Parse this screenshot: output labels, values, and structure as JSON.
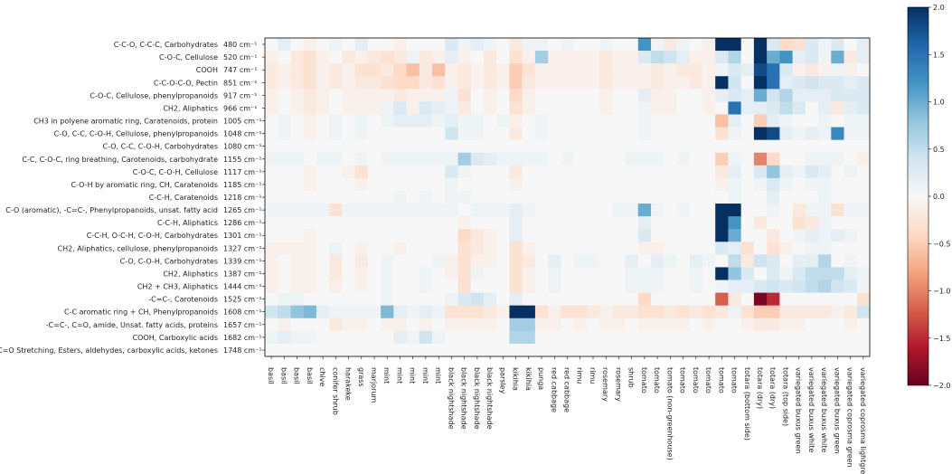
{
  "chart_data": {
    "type": "heatmap",
    "y_labels": [
      {
        "name": "C-C-O, C-C-C, Carbohydrates",
        "wavenumber": "480 cm⁻¹"
      },
      {
        "name": "C-O-C, Cellulose",
        "wavenumber": "520 cm⁻¹"
      },
      {
        "name": "COOH",
        "wavenumber": "747 cm⁻¹"
      },
      {
        "name": "C-C-O-C-O, Pectin",
        "wavenumber": "851 cm⁻¹"
      },
      {
        "name": "C-O-C, Cellulose, phenylpropanoids",
        "wavenumber": "917 cm⁻¹"
      },
      {
        "name": "CH2, Aliphatics",
        "wavenumber": "966 cm⁻¹"
      },
      {
        "name": "CH3 in polyene aromatic ring, Caratenoids, protein",
        "wavenumber": "1005 cm⁻¹"
      },
      {
        "name": "C-O, C-C, C-O-H, Cellulose, phenylpropanoids",
        "wavenumber": "1048 cm⁻¹"
      },
      {
        "name": "C-O, C-C, C-O-H, Carbohydrates",
        "wavenumber": "1080 cm⁻¹"
      },
      {
        "name": "C-C, C-O-C, ring breathing, Carotenoids, carbohydrate",
        "wavenumber": "1155 cm⁻¹"
      },
      {
        "name": "C-O-C, C-O-H, Cellulose",
        "wavenumber": "1117 cm⁻¹"
      },
      {
        "name": "C-O-H by aromatic ring, CH, Caratenoids",
        "wavenumber": "1185 cm⁻¹"
      },
      {
        "name": "C-C-H, Caratenoids",
        "wavenumber": "1218 cm⁻¹"
      },
      {
        "name": "C-O (aromatic), -C=C-, Phenylpropanoids, unsat. fatty acid",
        "wavenumber": "1265 cm⁻¹"
      },
      {
        "name": "C-C-H, Aliphatics",
        "wavenumber": "1286 cm⁻¹"
      },
      {
        "name": "C-C-H, O-C-H, C-O-H, Carbohydrates",
        "wavenumber": "1301 cm⁻¹"
      },
      {
        "name": "CH2, Aliphatics, cellulose, phenylpropanoids",
        "wavenumber": "1327 cm⁻¹"
      },
      {
        "name": "C-O, C-O-H, Carbohydrates",
        "wavenumber": "1339 cm⁻¹"
      },
      {
        "name": "CH2, Aliphatics",
        "wavenumber": "1387 cm⁻¹"
      },
      {
        "name": "CH2 + CH3, Aliphatics",
        "wavenumber": "1444 cm⁻¹"
      },
      {
        "name": "-C=C-, Carotenoids",
        "wavenumber": "1525 cm⁻¹"
      },
      {
        "name": "C-C aromatic ring + CH, Phenylpropanoids",
        "wavenumber": "1608 cm⁻¹"
      },
      {
        "name": "-C=C-, C=O, amide, Unsat. fatty acids, proteins",
        "wavenumber": "1657 cm⁻¹"
      },
      {
        "name": "COOH, Carboxylic acids",
        "wavenumber": "1682 cm⁻¹"
      },
      {
        "name": "C=O Stretching, Esters, aldehydes, carboxylic acids, ketones",
        "wavenumber": "1748 cm⁻¹"
      }
    ],
    "x_labels": [
      "basil",
      "basil",
      "basil",
      "basil",
      "chive",
      "conifer shrub",
      "harakeke",
      "grass",
      "marjorum",
      "mint",
      "mint",
      "mint",
      "mint",
      "mint",
      "black nightshade",
      "black nightshade",
      "black nightshade",
      "black nightshade",
      "parsley",
      "kikihia",
      "kikihia",
      "punga",
      "red cabbage",
      "red cabbage",
      "rimu",
      "rimu",
      "rosemary",
      "rosemary",
      "shrub",
      "tomato",
      "tomato",
      "tomato (non-greenhouse)",
      "tomato",
      "tomato",
      "tomato",
      "tomato",
      "tomato",
      "totara (bottom side)",
      "totara (dry)",
      "totara (dry)",
      "totara (top side)",
      "variegated buxus green",
      "variegated buxus white",
      "variegated buxus white",
      "variegated buxus green",
      "variegated coprosma green",
      "variegated coprosma lightgreen"
    ],
    "colorbar": {
      "min": -2.0,
      "max": 2.0,
      "ticks": [
        "2.0",
        "1.5",
        "1.0",
        "0.5",
        "0.0",
        "−0.5",
        "−1.0",
        "−1.5",
        "−2.0"
      ],
      "colormap": "RdBu"
    },
    "values": [
      [
        0.0,
        0.2,
        0.0,
        -0.1,
        0.0,
        0.1,
        0.0,
        0.2,
        0.0,
        0.0,
        -0.1,
        0.0,
        0.0,
        0.0,
        0.3,
        0.1,
        0.2,
        0.1,
        0.0,
        -0.2,
        0.1,
        0.1,
        0.0,
        0.1,
        0.0,
        0.0,
        0.1,
        0.0,
        0.0,
        1.2,
        0.1,
        -0.2,
        0.1,
        0.0,
        -0.1,
        2.0,
        2.0,
        0.0,
        2.0,
        0.3,
        -0.4,
        -0.3,
        0.3,
        0.1,
        0.3,
        0.0,
        0.2
      ],
      [
        -0.1,
        0.0,
        -0.2,
        -0.3,
        -0.1,
        0.0,
        -0.2,
        -0.1,
        -0.2,
        -0.3,
        -0.2,
        0.1,
        -0.2,
        -0.1,
        0.2,
        -0.1,
        0.0,
        -0.2,
        0.0,
        -0.3,
        -0.1,
        0.7,
        -0.1,
        -0.1,
        -0.1,
        -0.1,
        -0.2,
        -0.1,
        -0.1,
        0.3,
        0.5,
        0.4,
        0.2,
        -0.1,
        -0.1,
        0.3,
        0.6,
        0.0,
        2.0,
        1.0,
        1.2,
        0.2,
        0.3,
        0.1,
        1.0,
        -0.2,
        0.2
      ],
      [
        -0.2,
        -0.1,
        -0.2,
        -0.3,
        -0.1,
        -0.2,
        -0.1,
        -0.3,
        -0.3,
        -0.2,
        -0.4,
        -0.6,
        -0.2,
        -0.6,
        -0.1,
        -0.2,
        -0.1,
        -0.2,
        -0.1,
        -0.5,
        -0.3,
        -0.1,
        -0.1,
        -0.1,
        -0.1,
        -0.1,
        -0.2,
        -0.1,
        -0.1,
        -0.1,
        -0.2,
        -0.1,
        -0.2,
        -0.2,
        -0.1,
        0.1,
        0.3,
        0.2,
        1.8,
        1.5,
        0.3,
        -0.1,
        -0.2,
        -0.1,
        0.1,
        -0.1,
        0.0
      ],
      [
        -0.2,
        -0.1,
        -0.2,
        -0.3,
        -0.1,
        -0.2,
        -0.1,
        -0.2,
        -0.2,
        -0.3,
        -0.4,
        -0.4,
        -0.2,
        -0.3,
        -0.1,
        -0.2,
        -0.1,
        -0.2,
        -0.1,
        -0.5,
        -0.2,
        -0.1,
        -0.1,
        -0.1,
        -0.1,
        -0.1,
        -0.2,
        -0.1,
        -0.1,
        -0.1,
        -0.2,
        -0.1,
        -0.1,
        -0.2,
        -0.1,
        2.0,
        0.4,
        0.0,
        2.0,
        1.5,
        0.2,
        0.3,
        0.4,
        0.3,
        0.3,
        0.2,
        0.3
      ],
      [
        -0.1,
        0.0,
        -0.1,
        -0.2,
        -0.1,
        0.0,
        -0.1,
        -0.1,
        -0.1,
        -0.1,
        -0.2,
        -0.1,
        -0.1,
        -0.1,
        0.1,
        -0.3,
        0.0,
        -0.1,
        0.0,
        -0.4,
        -0.1,
        0.0,
        0.0,
        0.0,
        0.0,
        0.0,
        -0.1,
        0.0,
        0.0,
        0.2,
        -0.1,
        -0.1,
        0.0,
        0.0,
        -0.1,
        0.2,
        0.3,
        0.2,
        1.0,
        0.4,
        0.6,
        0.2,
        0.2,
        0.2,
        0.3,
        0.3,
        0.3
      ],
      [
        -0.1,
        0.0,
        -0.1,
        -0.2,
        -0.1,
        0.0,
        -0.1,
        -0.1,
        -0.1,
        0.1,
        0.3,
        -0.1,
        0.3,
        0.2,
        0.1,
        -0.2,
        0.0,
        -0.1,
        0.0,
        -0.3,
        -0.1,
        0.0,
        0.0,
        0.0,
        0.0,
        0.0,
        -0.1,
        0.0,
        0.0,
        0.1,
        -0.1,
        -0.1,
        0.0,
        0.0,
        -0.1,
        0.0,
        1.5,
        0.2,
        0.2,
        0.3,
        0.5,
        0.3,
        0.0,
        0.2,
        -0.2,
        0.2,
        0.3
      ],
      [
        0.0,
        0.1,
        0.0,
        -0.1,
        0.0,
        0.1,
        0.0,
        0.1,
        0.0,
        0.1,
        0.2,
        0.2,
        0.2,
        0.1,
        0.2,
        0.1,
        0.1,
        0.0,
        0.1,
        -0.1,
        0.0,
        0.1,
        0.0,
        0.0,
        0.0,
        0.0,
        0.0,
        0.0,
        0.0,
        0.1,
        0.0,
        0.0,
        0.0,
        0.0,
        0.0,
        -0.6,
        0.2,
        0.0,
        -0.5,
        0.2,
        0.1,
        0.0,
        0.0,
        0.1,
        0.0,
        0.1,
        0.1
      ],
      [
        0.0,
        0.1,
        0.0,
        -0.1,
        0.0,
        0.1,
        0.0,
        0.1,
        0.0,
        0.0,
        0.0,
        0.0,
        0.0,
        0.0,
        0.4,
        0.1,
        0.1,
        0.0,
        0.0,
        -0.2,
        0.0,
        0.1,
        0.0,
        0.0,
        0.0,
        0.0,
        0.0,
        0.0,
        0.0,
        0.1,
        0.0,
        0.0,
        0.0,
        0.0,
        0.0,
        -0.3,
        0.1,
        0.0,
        2.0,
        1.8,
        0.2,
        0.1,
        0.2,
        0.1,
        1.3,
        0.1,
        0.1
      ],
      [
        0.0,
        0.0,
        0.0,
        0.0,
        0.0,
        0.0,
        0.0,
        0.0,
        0.0,
        0.0,
        0.0,
        0.0,
        0.0,
        0.0,
        0.0,
        0.0,
        0.0,
        0.0,
        0.0,
        0.0,
        0.0,
        0.0,
        0.0,
        0.0,
        0.0,
        0.0,
        0.0,
        0.0,
        0.0,
        0.0,
        0.0,
        0.0,
        0.0,
        0.0,
        0.0,
        0.0,
        0.0,
        0.0,
        0.0,
        0.0,
        0.0,
        0.0,
        0.0,
        0.0,
        0.0,
        0.0,
        0.0
      ],
      [
        0.1,
        0.1,
        0.1,
        0.0,
        0.1,
        0.1,
        0.0,
        0.1,
        0.0,
        0.1,
        0.1,
        0.1,
        0.1,
        0.1,
        0.1,
        0.7,
        0.3,
        0.2,
        0.1,
        0.1,
        0.1,
        0.1,
        0.0,
        0.1,
        0.0,
        0.0,
        0.0,
        0.0,
        0.1,
        0.1,
        0.1,
        0.0,
        0.1,
        0.0,
        0.0,
        -0.5,
        0.1,
        0.0,
        -1.0,
        -0.4,
        0.0,
        0.0,
        0.1,
        0.1,
        0.1,
        0.0,
        -0.1
      ],
      [
        0.0,
        0.0,
        0.0,
        -0.1,
        0.0,
        0.0,
        -0.1,
        -0.3,
        0.0,
        0.0,
        0.0,
        0.0,
        0.0,
        0.0,
        0.3,
        0.1,
        0.0,
        0.0,
        0.0,
        -0.2,
        0.0,
        0.0,
        0.0,
        0.0,
        0.0,
        0.0,
        0.0,
        0.0,
        0.0,
        0.0,
        0.0,
        0.0,
        0.0,
        0.0,
        0.0,
        -0.2,
        0.2,
        0.0,
        0.3,
        0.8,
        0.2,
        0.1,
        0.3,
        0.2,
        0.0,
        0.1,
        0.0
      ],
      [
        0.0,
        0.0,
        0.0,
        -0.1,
        0.0,
        0.0,
        0.0,
        -0.1,
        0.0,
        0.0,
        0.0,
        0.0,
        0.0,
        0.0,
        0.1,
        0.0,
        0.0,
        0.0,
        0.0,
        -0.1,
        0.0,
        0.0,
        0.0,
        0.0,
        0.0,
        0.0,
        0.0,
        0.0,
        0.0,
        0.0,
        0.0,
        0.0,
        0.0,
        0.0,
        0.0,
        -0.1,
        0.1,
        0.0,
        0.1,
        0.3,
        0.1,
        0.0,
        0.1,
        0.1,
        0.0,
        0.0,
        0.0
      ],
      [
        0.0,
        0.0,
        0.0,
        0.0,
        0.0,
        0.0,
        0.0,
        0.0,
        0.0,
        0.0,
        0.1,
        0.0,
        0.1,
        0.0,
        0.1,
        0.1,
        0.0,
        0.0,
        0.0,
        0.0,
        0.0,
        0.0,
        0.0,
        0.0,
        0.0,
        0.0,
        0.0,
        0.0,
        0.0,
        0.0,
        0.0,
        0.0,
        0.0,
        0.0,
        0.0,
        0.0,
        0.1,
        0.0,
        0.0,
        0.2,
        0.0,
        0.0,
        0.0,
        0.1,
        0.0,
        0.0,
        0.0
      ],
      [
        0.1,
        0.1,
        0.1,
        0.1,
        0.1,
        -0.3,
        0.1,
        0.1,
        0.1,
        0.1,
        0.1,
        0.1,
        0.1,
        0.1,
        0.1,
        0.0,
        0.1,
        0.1,
        0.1,
        0.2,
        0.1,
        0.0,
        0.0,
        0.0,
        0.0,
        0.0,
        0.0,
        0.1,
        0.1,
        1.0,
        0.1,
        0.0,
        0.1,
        0.0,
        0.0,
        2.0,
        2.0,
        0.0,
        0.0,
        0.1,
        0.0,
        -0.2,
        0.1,
        0.1,
        -0.3,
        0.1,
        0.1
      ],
      [
        0.0,
        0.0,
        0.0,
        0.0,
        0.0,
        0.0,
        0.0,
        0.0,
        0.0,
        0.0,
        0.0,
        0.0,
        0.0,
        0.0,
        0.0,
        -0.1,
        0.0,
        0.0,
        0.0,
        0.2,
        0.0,
        0.0,
        0.0,
        0.0,
        0.0,
        0.0,
        0.0,
        0.0,
        0.0,
        0.2,
        0.0,
        0.0,
        0.0,
        0.0,
        0.0,
        2.0,
        1.2,
        0.0,
        -0.2,
        0.0,
        0.0,
        -0.3,
        -0.2,
        0.1,
        0.0,
        0.0,
        0.0
      ],
      [
        0.0,
        0.0,
        0.0,
        -0.1,
        0.0,
        0.0,
        0.0,
        0.0,
        0.0,
        0.0,
        0.0,
        0.0,
        0.0,
        0.0,
        0.0,
        -0.4,
        -0.2,
        -0.1,
        0.0,
        0.2,
        0.0,
        0.0,
        0.0,
        0.0,
        0.0,
        0.0,
        0.0,
        0.0,
        0.0,
        0.3,
        0.0,
        0.0,
        0.0,
        0.0,
        0.0,
        2.0,
        1.0,
        0.0,
        0.0,
        -0.2,
        0.0,
        0.1,
        0.2,
        0.1,
        0.2,
        0.1,
        0.0
      ],
      [
        -0.1,
        -0.1,
        -0.1,
        -0.1,
        0.0,
        0.1,
        0.0,
        -0.1,
        0.0,
        0.0,
        -0.1,
        0.0,
        0.0,
        0.0,
        0.0,
        -0.3,
        -0.2,
        -0.1,
        0.0,
        -0.3,
        -0.1,
        0.0,
        0.0,
        0.0,
        0.0,
        0.0,
        0.0,
        0.0,
        0.0,
        -0.1,
        -0.1,
        0.0,
        0.0,
        0.0,
        0.0,
        0.3,
        0.2,
        -0.3,
        0.0,
        -0.3,
        -0.1,
        0.0,
        0.1,
        0.1,
        0.0,
        0.0,
        0.0
      ],
      [
        -0.1,
        0.0,
        -0.1,
        -0.1,
        0.0,
        -0.2,
        0.0,
        -0.2,
        0.0,
        0.1,
        0.0,
        0.0,
        0.0,
        0.1,
        -0.1,
        -0.3,
        -0.1,
        -0.1,
        0.0,
        -0.3,
        -0.2,
        0.0,
        0.2,
        0.0,
        0.1,
        0.1,
        0.0,
        0.0,
        0.2,
        0.0,
        0.2,
        0.1,
        0.0,
        0.2,
        0.1,
        0.0,
        0.5,
        -0.2,
        0.4,
        0.3,
        0.0,
        0.2,
        0.2,
        0.6,
        0.0,
        0.1,
        0.0
      ],
      [
        -0.1,
        0.0,
        -0.1,
        -0.1,
        0.0,
        -0.2,
        0.0,
        -0.1,
        0.0,
        0.1,
        0.0,
        0.0,
        0.1,
        0.0,
        -0.1,
        -0.3,
        0.1,
        0.0,
        0.0,
        -0.3,
        -0.1,
        0.0,
        0.1,
        0.0,
        0.0,
        0.0,
        0.0,
        0.0,
        0.1,
        0.1,
        0.1,
        0.0,
        0.0,
        0.1,
        0.0,
        2.0,
        0.8,
        0.3,
        0.0,
        0.3,
        0.1,
        0.3,
        0.5,
        0.5,
        0.5,
        0.2,
        0.1
      ],
      [
        -0.1,
        0.0,
        -0.1,
        -0.1,
        0.0,
        -0.1,
        0.0,
        -0.1,
        0.0,
        0.1,
        0.0,
        0.0,
        0.1,
        0.0,
        0.0,
        -0.3,
        0.0,
        0.0,
        0.0,
        -0.3,
        -0.1,
        0.0,
        0.1,
        0.0,
        0.0,
        0.0,
        0.0,
        0.0,
        0.1,
        0.1,
        0.1,
        0.0,
        0.0,
        0.1,
        0.0,
        0.1,
        0.2,
        0.2,
        0.3,
        0.4,
        0.3,
        0.4,
        0.5,
        0.6,
        0.4,
        0.3,
        0.1
      ],
      [
        0.0,
        0.1,
        0.1,
        0.0,
        0.0,
        0.0,
        0.0,
        0.0,
        0.0,
        0.1,
        0.0,
        0.0,
        0.0,
        0.0,
        0.1,
        0.3,
        0.4,
        0.2,
        0.0,
        0.2,
        0.0,
        0.0,
        0.0,
        0.0,
        0.0,
        0.0,
        0.0,
        0.0,
        0.0,
        -0.4,
        0.0,
        0.0,
        0.0,
        0.0,
        0.0,
        -1.2,
        -0.2,
        0.0,
        -1.9,
        -1.5,
        0.0,
        0.0,
        0.0,
        0.0,
        0.0,
        0.0,
        -0.3
      ],
      [
        0.4,
        0.5,
        0.8,
        0.9,
        0.2,
        0.1,
        0.1,
        0.1,
        0.1,
        0.9,
        0.2,
        0.1,
        0.2,
        0.1,
        -0.3,
        -0.3,
        -0.3,
        -0.2,
        -0.1,
        2.0,
        2.0,
        -0.3,
        -0.1,
        -0.3,
        -0.3,
        -0.2,
        -0.1,
        -0.2,
        -0.2,
        -0.3,
        -0.3,
        -0.2,
        -0.3,
        -0.2,
        -0.3,
        -0.2,
        0.1,
        -0.3,
        -0.5,
        -0.5,
        -0.2,
        -0.2,
        -0.2,
        -0.2,
        -0.1,
        -0.2,
        0.4
      ],
      [
        0.0,
        -0.1,
        0.0,
        0.0,
        0.0,
        -0.2,
        -0.1,
        -0.1,
        0.0,
        -0.1,
        -0.1,
        0.0,
        -0.1,
        0.0,
        -0.1,
        -0.1,
        -0.1,
        -0.1,
        0.0,
        0.7,
        0.7,
        -0.1,
        -0.1,
        0.0,
        -0.1,
        0.0,
        -0.1,
        -0.1,
        0.0,
        -0.1,
        -0.1,
        -0.1,
        -0.1,
        0.0,
        -0.1,
        0.0,
        0.0,
        -0.1,
        -0.2,
        -0.2,
        -0.1,
        -0.1,
        0.0,
        0.0,
        0.0,
        -0.1,
        0.0
      ],
      [
        0.1,
        0.2,
        0.1,
        0.1,
        0.0,
        0.0,
        0.0,
        0.0,
        0.0,
        0.0,
        0.2,
        0.1,
        0.4,
        0.1,
        0.0,
        0.0,
        0.0,
        0.0,
        0.0,
        0.6,
        0.6,
        0.0,
        0.0,
        0.0,
        0.0,
        0.0,
        0.0,
        0.0,
        0.0,
        0.0,
        0.0,
        0.0,
        0.0,
        0.0,
        0.0,
        0.0,
        0.0,
        0.0,
        0.0,
        0.0,
        0.0,
        0.0,
        0.0,
        0.0,
        0.0,
        0.0,
        0.0
      ],
      [
        0.0,
        0.0,
        0.0,
        0.0,
        0.0,
        0.0,
        0.0,
        0.0,
        0.0,
        0.0,
        0.0,
        0.0,
        0.0,
        0.0,
        0.0,
        0.0,
        0.0,
        0.0,
        0.0,
        0.0,
        0.0,
        0.0,
        0.0,
        0.0,
        0.0,
        0.0,
        0.0,
        0.0,
        0.0,
        0.0,
        0.0,
        0.0,
        0.0,
        0.0,
        0.0,
        0.0,
        0.0,
        0.0,
        0.0,
        0.0,
        0.0,
        0.0,
        0.0,
        0.0,
        0.0,
        0.0,
        0.0
      ]
    ]
  }
}
